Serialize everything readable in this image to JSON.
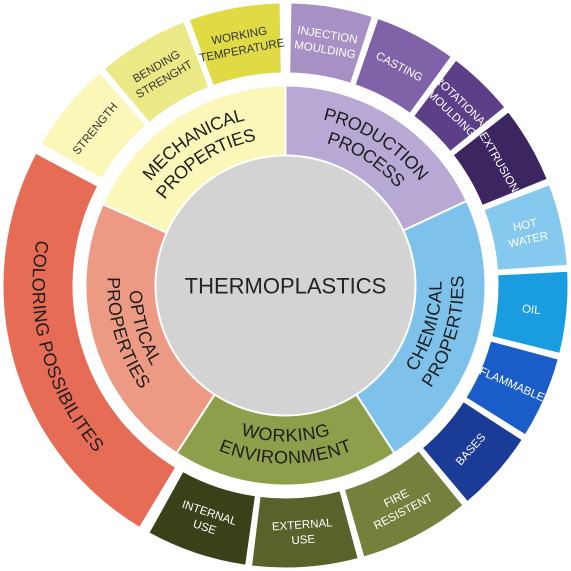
{
  "center": {
    "label": "THERMOPLASTICS",
    "color": "#d3d3d3"
  },
  "inner_ring": [
    {
      "id": "production",
      "lines": [
        "PRODUCTION",
        "PROCESS"
      ],
      "color": "#b7a8d4",
      "start": 0,
      "end": 65
    },
    {
      "id": "chemical",
      "lines": [
        "CHEMICAL",
        "PROPERTIES"
      ],
      "color": "#7ec2ec",
      "start": 65,
      "end": 147
    },
    {
      "id": "working-environment",
      "lines": [
        "WORKING",
        "ENVIRONMENT"
      ],
      "color": "#8d9f4a",
      "start": 147,
      "end": 213
    },
    {
      "id": "optical",
      "lines": [
        "OPTICAL",
        "PROPERTIES"
      ],
      "color": "#ec9a83",
      "start": 213,
      "end": 294
    },
    {
      "id": "mechanical",
      "lines": [
        "MECHANICAL",
        "PROPERTIES"
      ],
      "color": "#fbf7b9",
      "start": 294,
      "end": 360
    }
  ],
  "outer_ring": [
    {
      "id": "injection-moulding",
      "lines": [
        "INJECTION",
        "MOULDING"
      ],
      "color": "#a690c4",
      "text_color": "#ffffff",
      "start": 1,
      "end": 18
    },
    {
      "id": "casting",
      "lines": [
        "CASTING"
      ],
      "color": "#7f62a8",
      "text_color": "#ffffff",
      "start": 19,
      "end": 36
    },
    {
      "id": "rotational-moulding",
      "lines": [
        "ROTATIONAL",
        "MOULDING"
      ],
      "color": "#5c3f87",
      "text_color": "#ffffff",
      "start": 37,
      "end": 51
    },
    {
      "id": "extrusion",
      "lines": [
        "EXTRUSION"
      ],
      "color": "#3b2660",
      "text_color": "#ffffff",
      "start": 52,
      "end": 68
    },
    {
      "id": "hot-water",
      "lines": [
        "HOT",
        "WATER"
      ],
      "color": "#86c9ee",
      "text_color": "#ffffff",
      "start": 69,
      "end": 86
    },
    {
      "id": "oil",
      "lines": [
        "OIL"
      ],
      "color": "#1a9de0",
      "text_color": "#ffffff",
      "start": 87,
      "end": 104
    },
    {
      "id": "flammable",
      "lines": [
        "FLAMMABLE"
      ],
      "color": "#1a5cc8",
      "text_color": "#ffffff",
      "start": 105,
      "end": 122
    },
    {
      "id": "bases",
      "lines": [
        "BASES"
      ],
      "color": "#1b3c96",
      "text_color": "#ffffff",
      "start": 123,
      "end": 140
    },
    {
      "id": "fire-resistent",
      "lines": [
        "FIRE",
        "RESISTENT"
      ],
      "color": "#75803c",
      "text_color": "#ffffff",
      "start": 141,
      "end": 164
    },
    {
      "id": "external-use",
      "lines": [
        "EXTERNAL",
        "USE"
      ],
      "color": "#59622a",
      "text_color": "#ffffff",
      "start": 165,
      "end": 187
    },
    {
      "id": "internal-use",
      "lines": [
        "INTERNAL",
        "USE"
      ],
      "color": "#394119",
      "text_color": "#ffffff",
      "start": 188,
      "end": 209
    },
    {
      "id": "coloring-possibilites",
      "lines": [
        "COLORING POSSIBILITES"
      ],
      "color": "#e66c55",
      "text_color": "#1e1e1e",
      "start": 211,
      "end": 298,
      "big": true
    },
    {
      "id": "strength",
      "lines": [
        "STRENGTH"
      ],
      "color": "#fbf7b9",
      "text_color": "#333333",
      "start": 300,
      "end": 319
    },
    {
      "id": "bending-strenght",
      "lines": [
        "BENDING",
        "STRENGHT"
      ],
      "color": "#ebe886",
      "text_color": "#333333",
      "start": 320,
      "end": 339
    },
    {
      "id": "working-temperature",
      "lines": [
        "WORKING",
        "TEMPERATURE"
      ],
      "color": "#e0da45",
      "text_color": "#333333",
      "start": 340,
      "end": 359
    }
  ]
}
